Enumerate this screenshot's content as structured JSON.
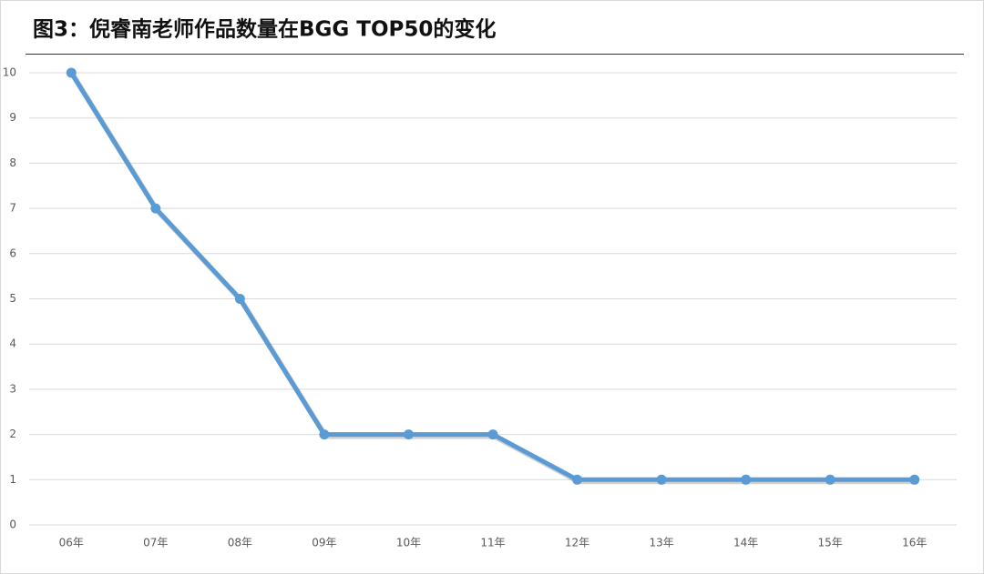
{
  "chart_data": {
    "type": "line",
    "title": "图3：倪睿南老师作品数量在BGG TOP50的变化",
    "categories": [
      "06年",
      "07年",
      "08年",
      "09年",
      "10年",
      "11年",
      "12年",
      "13年",
      "14年",
      "15年",
      "16年"
    ],
    "values": [
      10,
      7,
      5,
      2,
      2,
      2,
      1,
      1,
      1,
      1,
      1
    ],
    "color": "#5b9bd5",
    "ylim": [
      0,
      10
    ],
    "yticks": [
      0,
      1,
      2,
      3,
      4,
      5,
      6,
      7,
      8,
      9,
      10
    ],
    "grid": true
  }
}
